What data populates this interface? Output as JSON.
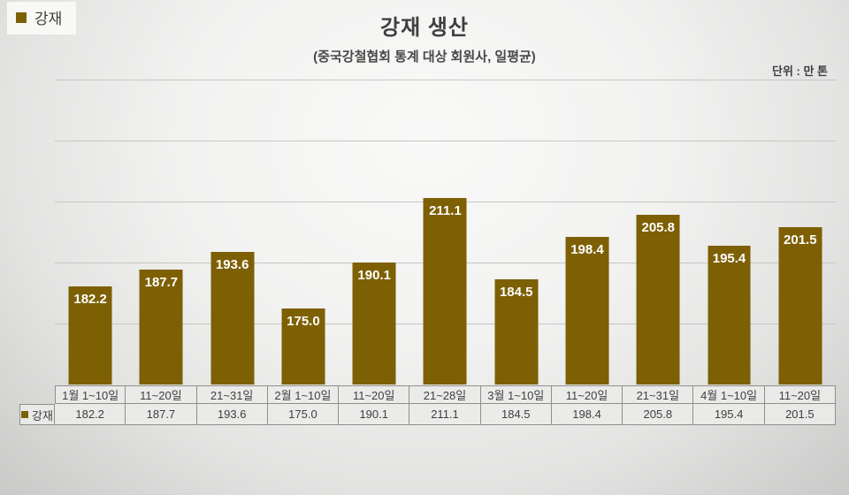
{
  "legend": {
    "label": "강재"
  },
  "header": {
    "title": "강재 생산",
    "subtitle": "(중국강철협회 통계 대상 회원사, 일평균)",
    "unit_label": "단위 : 만 톤"
  },
  "colors": {
    "bar": "#7d6004",
    "value_label": "#ffffff",
    "title_text": "#3f3f3f",
    "gridline": "#c6c6c5",
    "table_border": "#8f8f8e"
  },
  "chart_data": {
    "type": "bar",
    "title": "강재 생산",
    "subtitle": "(중국강철협회 통계 대상 회원사, 일평균)",
    "unit": "단위 : 만 톤",
    "categories": [
      "1월 1~10일",
      "11~20일",
      "21~31일",
      "2월 1~10일",
      "11~20일",
      "21~28일",
      "3월 1~10일",
      "11~20일",
      "21~31일",
      "4월 1~10일",
      "11~20일"
    ],
    "series": [
      {
        "name": "강재",
        "values": [
          182.2,
          187.7,
          193.6,
          175.0,
          190.1,
          211.1,
          184.5,
          198.4,
          205.8,
          195.4,
          201.5
        ]
      }
    ],
    "ylim": [
      150,
      250
    ],
    "gridline_interval": 20,
    "grid": true,
    "y_axis_labels_visible": false,
    "legend_position": "top-left",
    "data_labels": "inside-end",
    "data_table_shown": true,
    "value_decimals": 1
  },
  "table": {
    "row_label": "강재"
  }
}
